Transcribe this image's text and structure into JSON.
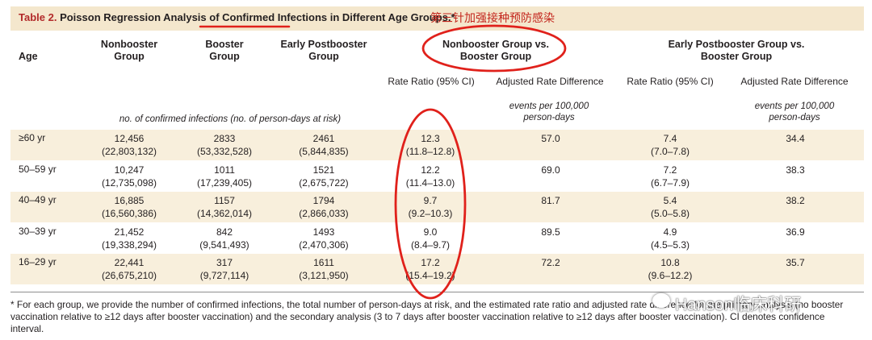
{
  "table": {
    "title_prefix": "Table 2.",
    "title_rest": " Poisson Regression Analysis of Confirmed Infections in Different Age Groups.",
    "title_mark": "*",
    "annotation_note": "第三针加强接种预防感染",
    "headers": {
      "age": "Age",
      "nonbooster": "Nonbooster Group",
      "booster": "Booster Group",
      "early": "Early Postbooster Group",
      "cmp1": "Nonbooster Group vs. Booster Group",
      "cmp2": "Early Postbooster Group vs. Booster Group",
      "rate_ratio": "Rate Ratio (95% CI)",
      "adj_diff": "Adjusted Rate Difference",
      "units_counts": "no. of confirmed infections (no. of person-days at risk)",
      "units_events": "events per 100,000 person-days"
    },
    "rows": [
      {
        "age": "≥60 yr",
        "non": "12,456",
        "non_pd": "(22,803,132)",
        "boo": "2833",
        "boo_pd": "(53,332,528)",
        "early": "2461",
        "early_pd": "(5,844,835)",
        "rr1": "12.3",
        "rr1_ci": "(11.8–12.8)",
        "diff1": "57.0",
        "rr2": "7.4",
        "rr2_ci": "(7.0–7.8)",
        "diff2": "34.4"
      },
      {
        "age": "50–59 yr",
        "non": "10,247",
        "non_pd": "(12,735,098)",
        "boo": "1011",
        "boo_pd": "(17,239,405)",
        "early": "1521",
        "early_pd": "(2,675,722)",
        "rr1": "12.2",
        "rr1_ci": "(11.4–13.0)",
        "diff1": "69.0",
        "rr2": "7.2",
        "rr2_ci": "(6.7–7.9)",
        "diff2": "38.3"
      },
      {
        "age": "40–49 yr",
        "non": "16,885",
        "non_pd": "(16,560,386)",
        "boo": "1157",
        "boo_pd": "(14,362,014)",
        "early": "1794",
        "early_pd": "(2,866,033)",
        "rr1": "9.7",
        "rr1_ci": "(9.2–10.3)",
        "diff1": "81.7",
        "rr2": "5.4",
        "rr2_ci": "(5.0–5.8)",
        "diff2": "38.2"
      },
      {
        "age": "30–39 yr",
        "non": "21,452",
        "non_pd": "(19,338,294)",
        "boo": "842",
        "boo_pd": "(9,541,493)",
        "early": "1493",
        "early_pd": "(2,470,306)",
        "rr1": "9.0",
        "rr1_ci": "(8.4–9.7)",
        "diff1": "89.5",
        "rr2": "4.9",
        "rr2_ci": "(4.5–5.3)",
        "diff2": "36.9"
      },
      {
        "age": "16–29 yr",
        "non": "22,441",
        "non_pd": "(26,675,210)",
        "boo": "317",
        "boo_pd": "(9,727,114)",
        "early": "1611",
        "early_pd": "(3,121,950)",
        "rr1": "17.2",
        "rr1_ci": "(15.4–19.2)",
        "diff1": "72.2",
        "rr2": "10.8",
        "rr2_ci": "(9.6–12.2)",
        "diff2": "35.7"
      }
    ],
    "footnote": "* For each group, we provide the number of confirmed infections, the total number of person-days at risk, and the estimated rate ratio and adjusted rate difference for the primary analysis (no booster vaccination relative to ≥12 days after booster vaccination) and the secondary analysis (3 to 7 days after booster vaccination relative to ≥12 days after booster vaccination). CI denotes confidence interval."
  },
  "watermark": "Hanson临床科研",
  "colors": {
    "title_bg": "#f4e7cd",
    "row_bg": "#f8efdc",
    "title_accent": "#b22a2a",
    "annotation": "#e0211b"
  }
}
